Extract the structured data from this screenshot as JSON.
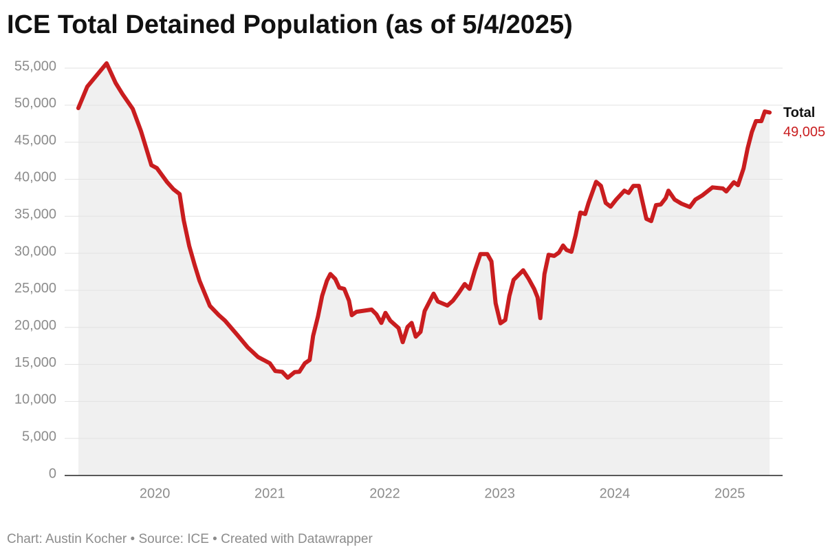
{
  "chart_data": {
    "type": "line",
    "title": "ICE Total Detained Population (as of 5/4/2025)",
    "source": "Chart: Austin Kocher • Source: ICE • Created with Datawrapper",
    "x": [
      2019.335,
      2019.413,
      2019.581,
      2019.659,
      2019.719,
      2019.808,
      2019.88,
      2019.97,
      2020.018,
      2020.108,
      2020.162,
      2020.216,
      2020.251,
      2020.299,
      2020.347,
      2020.389,
      2020.479,
      2020.557,
      2020.611,
      2020.719,
      2020.808,
      2020.898,
      2021.0,
      2021.048,
      2021.108,
      2021.156,
      2021.216,
      2021.257,
      2021.305,
      2021.347,
      2021.377,
      2021.419,
      2021.455,
      2021.497,
      2021.527,
      2021.569,
      2021.605,
      2021.647,
      2021.689,
      2021.713,
      2021.754,
      2021.886,
      2021.928,
      2021.97,
      2022.006,
      2022.048,
      2022.12,
      2022.156,
      2022.198,
      2022.234,
      2022.269,
      2022.311,
      2022.347,
      2022.425,
      2022.461,
      2022.545,
      2022.593,
      2022.641,
      2022.695,
      2022.737,
      2022.784,
      2022.832,
      2022.892,
      2022.928,
      2022.964,
      2023.006,
      2023.048,
      2023.084,
      2023.12,
      2023.204,
      2023.251,
      2023.299,
      2023.329,
      2023.353,
      2023.389,
      2023.425,
      2023.473,
      2023.515,
      2023.551,
      2023.581,
      2023.623,
      2023.659,
      2023.701,
      2023.743,
      2023.772,
      2023.838,
      2023.88,
      2023.922,
      2023.964,
      2024.012,
      2024.084,
      2024.12,
      2024.162,
      2024.21,
      2024.275,
      2024.317,
      2024.359,
      2024.401,
      2024.443,
      2024.467,
      2024.521,
      2024.581,
      2024.653,
      2024.701,
      2024.76,
      2024.85,
      2024.94,
      2024.97,
      2025.036,
      2025.072,
      2025.12,
      2025.156,
      2025.192,
      2025.228,
      2025.275,
      2025.305,
      2025.347
    ],
    "series": [
      {
        "name": "Total",
        "color": "#c91d1f",
        "values": [
          49600,
          52500,
          55650,
          53000,
          51500,
          49500,
          46500,
          41900,
          41500,
          39600,
          38650,
          38000,
          34500,
          31000,
          28400,
          26300,
          22900,
          21650,
          20900,
          18950,
          17300,
          16000,
          15150,
          14100,
          14000,
          13200,
          13950,
          14000,
          15150,
          15600,
          18850,
          21450,
          24250,
          26300,
          27200,
          26550,
          25350,
          25200,
          23600,
          21650,
          22100,
          22400,
          21750,
          20600,
          21950,
          20900,
          19900,
          18000,
          20050,
          20600,
          18750,
          19400,
          22200,
          24550,
          23500,
          22950,
          23600,
          24600,
          25850,
          25200,
          27700,
          29900,
          29900,
          28900,
          23250,
          20550,
          21000,
          24250,
          26400,
          27700,
          26550,
          25200,
          24050,
          21250,
          27200,
          29800,
          29650,
          30100,
          31050,
          30450,
          30200,
          32400,
          35500,
          35300,
          36800,
          39650,
          39100,
          36800,
          36300,
          37250,
          38450,
          38150,
          39100,
          39100,
          34650,
          34350,
          36500,
          36600,
          37450,
          38450,
          37250,
          36700,
          36250,
          37250,
          37800,
          38900,
          38750,
          38350,
          39600,
          39200,
          41450,
          44200,
          46350,
          47850,
          47850,
          49150,
          49005
        ],
        "value_labels": [
          null,
          null,
          null,
          null,
          null,
          null,
          null,
          null,
          null,
          null,
          null,
          null,
          null,
          null,
          null,
          null,
          null,
          null,
          null,
          null,
          null,
          null,
          null,
          null,
          null,
          null,
          null,
          null,
          null,
          null,
          null,
          null,
          null,
          null,
          null,
          null,
          null,
          null,
          null,
          null,
          null,
          null,
          null,
          null,
          null,
          null,
          null,
          null,
          null,
          null,
          null,
          null,
          null,
          null,
          null,
          null,
          null,
          null,
          null,
          null,
          null,
          null,
          null,
          null,
          null,
          null,
          null,
          null,
          null,
          null,
          null,
          null,
          null,
          null,
          null,
          null,
          null,
          null,
          null,
          null,
          null,
          null,
          null,
          null,
          null,
          null,
          null,
          null,
          null,
          null,
          null,
          null,
          null,
          null,
          null,
          null,
          null,
          null,
          null,
          null,
          null,
          null,
          null,
          null,
          null,
          null,
          null,
          null,
          null,
          null,
          null,
          null,
          null,
          null,
          null,
          null,
          "49,005"
        ]
      }
    ],
    "area_color": "#f0f0f0",
    "xlim": [
      2019.216,
      2025.46
    ],
    "xticks": [
      2020,
      2021,
      2022,
      2023,
      2024,
      2025
    ],
    "ylim": [
      0,
      55000
    ],
    "yticks": [
      0,
      {
        "value": 5000,
        "label": "5,000"
      },
      {
        "value": 10000,
        "label": "10,000"
      },
      {
        "value": 15000,
        "label": "15,000"
      },
      {
        "value": 20000,
        "label": "20,000"
      },
      {
        "value": 25000,
        "label": "25,000"
      },
      {
        "value": 30000,
        "label": "30,000"
      },
      {
        "value": 35000,
        "label": "35,000"
      },
      {
        "value": 40000,
        "label": "40,000"
      },
      {
        "value": 45000,
        "label": "45,000"
      },
      {
        "value": 50000,
        "label": "50,000"
      },
      {
        "value": 55000,
        "label": "55,000"
      }
    ],
    "grid": true
  }
}
